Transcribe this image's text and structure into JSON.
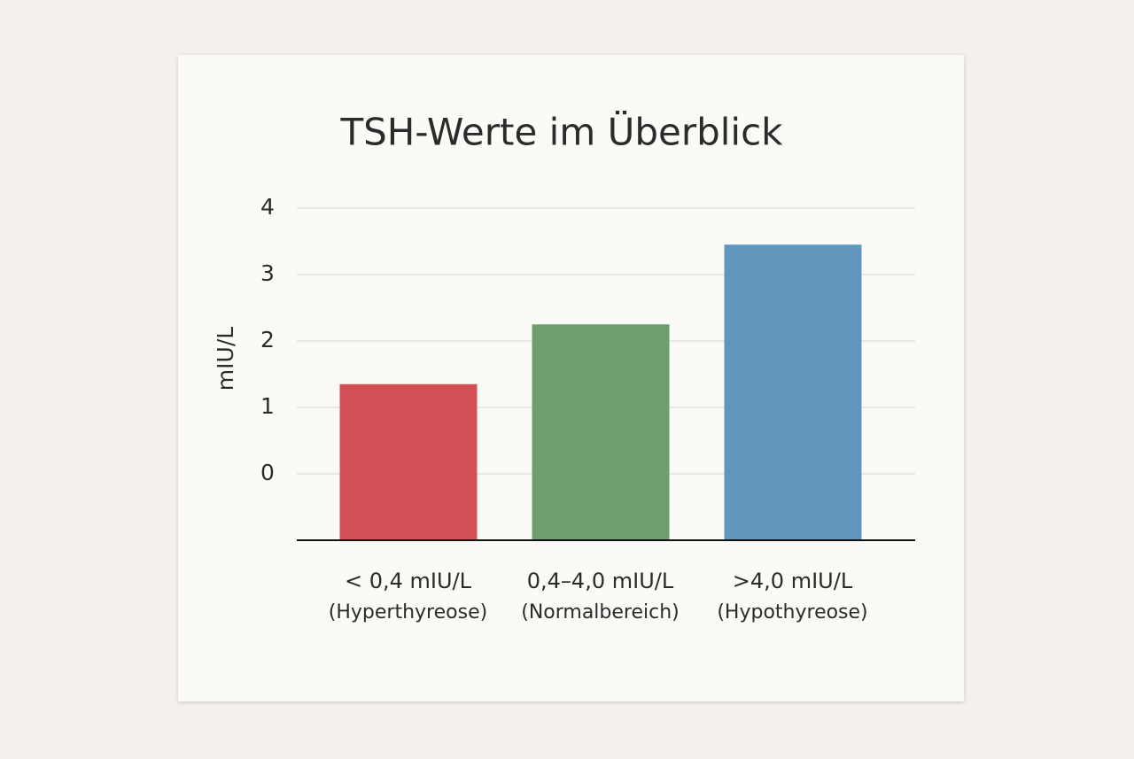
{
  "chart_data": {
    "type": "bar",
    "title": "TSH-Werte im Überblick",
    "y_label": "mIU/L",
    "categories": [
      [
        "< 0,4 mIU/L",
        "(Hyperthyreose)"
      ],
      [
        "0,4–4,0 mIU/L",
        "(Normalbereich)"
      ],
      [
        ">4,0 mIU/L",
        "(Hypothyreose)"
      ]
    ],
    "values": [
      1.35,
      2.25,
      3.45
    ],
    "colors": [
      "#d44f55",
      "#6e9e6e",
      "#6096bb"
    ],
    "ylim": [
      -1,
      4
    ],
    "yticks": [
      0,
      1,
      2,
      3,
      4
    ],
    "grid": true
  }
}
